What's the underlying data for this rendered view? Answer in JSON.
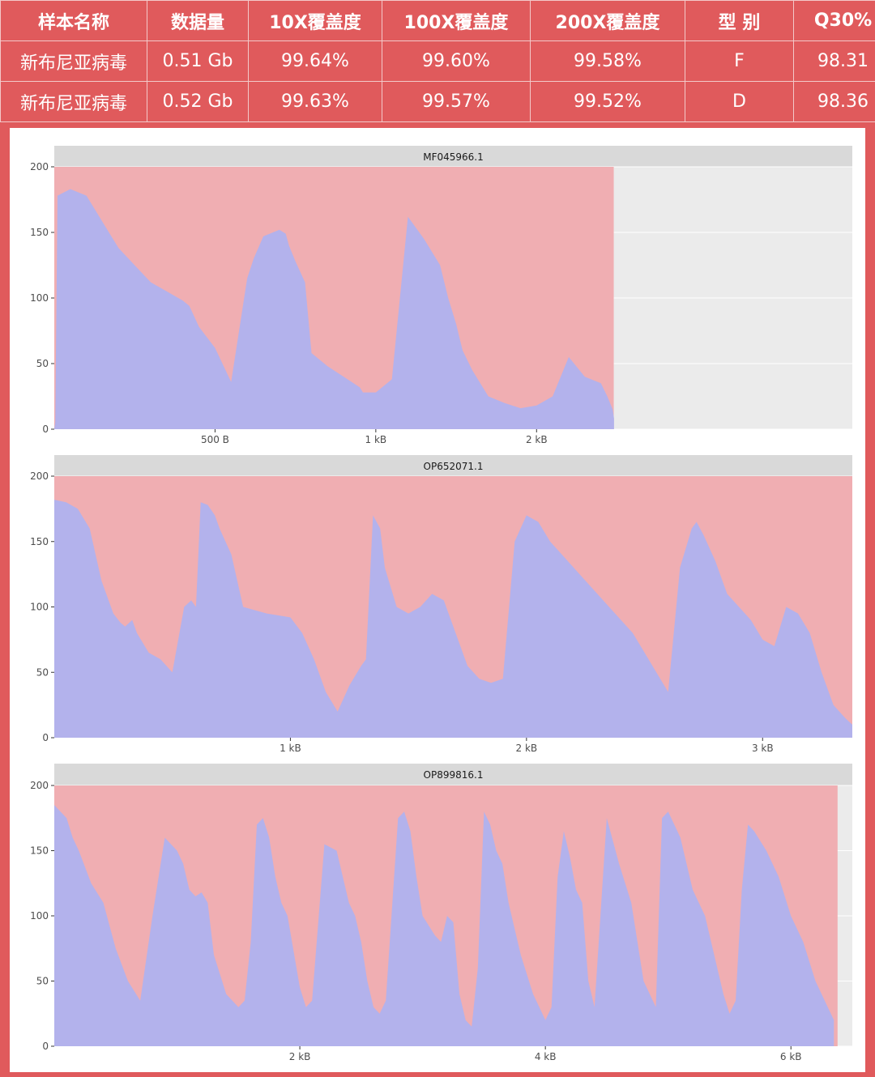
{
  "table": {
    "headers": [
      "样本名称",
      "数据量",
      "10X覆盖度",
      "100X覆盖度",
      "200X覆盖度",
      "型 别",
      "Q30%"
    ],
    "rows": [
      [
        "新布尼亚病毒",
        "0.51 Gb",
        "99.64%",
        "99.60%",
        "99.58%",
        "F",
        "98.31"
      ],
      [
        "新布尼亚病毒",
        "0.52 Gb",
        "99.63%",
        "99.57%",
        "99.52%",
        "D",
        "98.36"
      ]
    ]
  },
  "colors": {
    "background": "#e05a5c",
    "cap_fill": "#f0aeb2",
    "depth_fill": "#b3b2ec",
    "strip": "#d9d9d9",
    "panel_bg": "#ebebeb"
  },
  "chart_data": [
    {
      "type": "area",
      "title": "MF045966.1",
      "ylim": [
        0,
        200
      ],
      "yticks": [
        0,
        50,
        100,
        150,
        200
      ],
      "xlim": [
        0,
        2482
      ],
      "xticks": [
        {
          "value": 500,
          "label": "500 B"
        },
        {
          "value": 1000,
          "label": "1 kB"
        },
        {
          "value": 1500,
          "label": "2 kB"
        }
      ],
      "x": [
        0,
        3,
        10,
        50,
        100,
        150,
        200,
        250,
        300,
        350,
        400,
        420,
        450,
        500,
        550,
        600,
        620,
        650,
        700,
        720,
        730,
        750,
        780,
        800,
        850,
        900,
        950,
        960,
        1000,
        1050,
        1100,
        1150,
        1200,
        1225,
        1250,
        1260,
        1270,
        1300,
        1350,
        1400,
        1450,
        1500,
        1550,
        1600,
        1650,
        1700,
        1720,
        1737,
        1741
      ],
      "y": [
        0,
        5,
        178,
        183,
        178,
        158,
        138,
        125,
        112,
        105,
        98,
        94,
        78,
        62,
        36,
        115,
        130,
        147,
        152,
        149,
        140,
        128,
        112,
        58,
        48,
        40,
        32,
        28,
        28,
        38,
        162,
        145,
        125,
        100,
        80,
        70,
        60,
        45,
        25,
        20,
        16,
        18,
        25,
        55,
        40,
        35,
        25,
        15,
        8
      ],
      "cap": 200,
      "cap_end": 1740
    },
    {
      "type": "area",
      "title": "OP652071.1",
      "ylim": [
        0,
        200
      ],
      "yticks": [
        0,
        50,
        100,
        150,
        200
      ],
      "xlim": [
        0,
        3380
      ],
      "xticks": [
        {
          "value": 1000,
          "label": "1 kB"
        },
        {
          "value": 2000,
          "label": "2 kB"
        },
        {
          "value": 3000,
          "label": "3 kB"
        }
      ],
      "x": [
        0,
        50,
        100,
        150,
        200,
        250,
        280,
        300,
        330,
        350,
        400,
        450,
        500,
        550,
        580,
        600,
        620,
        650,
        680,
        700,
        750,
        800,
        900,
        1000,
        1050,
        1100,
        1150,
        1200,
        1250,
        1300,
        1320,
        1350,
        1380,
        1400,
        1450,
        1500,
        1550,
        1600,
        1650,
        1700,
        1750,
        1800,
        1850,
        1900,
        1950,
        2000,
        2020,
        2050,
        2100,
        2150,
        2200,
        2250,
        2300,
        2350,
        2400,
        2450,
        2500,
        2550,
        2600,
        2650,
        2700,
        2720,
        2750,
        2800,
        2850,
        2900,
        2950,
        3000,
        3050,
        3100,
        3150,
        3200,
        3250,
        3300,
        3350,
        3380
      ],
      "y": [
        182,
        180,
        175,
        160,
        120,
        95,
        88,
        85,
        90,
        80,
        65,
        60,
        50,
        100,
        105,
        100,
        180,
        178,
        170,
        160,
        140,
        100,
        95,
        92,
        80,
        60,
        35,
        20,
        40,
        55,
        60,
        170,
        160,
        130,
        100,
        95,
        100,
        110,
        105,
        80,
        55,
        45,
        42,
        45,
        150,
        170,
        168,
        165,
        150,
        140,
        130,
        120,
        110,
        100,
        90,
        80,
        65,
        50,
        35,
        130,
        160,
        165,
        155,
        135,
        110,
        100,
        90,
        75,
        70,
        100,
        95,
        80,
        50,
        25,
        15,
        10
      ],
      "cap": 200,
      "cap_end": 3380
    },
    {
      "type": "area",
      "title": "OP899816.1",
      "ylim": [
        0,
        200
      ],
      "yticks": [
        0,
        50,
        100,
        150,
        200
      ],
      "xlim": [
        0,
        6500
      ],
      "xticks": [
        {
          "value": 2000,
          "label": "2 kB"
        },
        {
          "value": 4000,
          "label": "4 kB"
        },
        {
          "value": 6000,
          "label": "6 kB"
        }
      ],
      "x": [
        0,
        50,
        100,
        150,
        200,
        300,
        400,
        500,
        600,
        700,
        800,
        900,
        1000,
        1050,
        1100,
        1150,
        1200,
        1250,
        1300,
        1400,
        1500,
        1550,
        1600,
        1650,
        1700,
        1750,
        1800,
        1850,
        1900,
        2000,
        2050,
        2100,
        2200,
        2300,
        2400,
        2450,
        2500,
        2550,
        2600,
        2650,
        2700,
        2800,
        2850,
        2900,
        2950,
        3000,
        3100,
        3150,
        3200,
        3250,
        3300,
        3350,
        3400,
        3450,
        3500,
        3550,
        3600,
        3650,
        3700,
        3800,
        3900,
        4000,
        4050,
        4100,
        4150,
        4200,
        4250,
        4300,
        4350,
        4400,
        4500,
        4600,
        4700,
        4800,
        4850,
        4900,
        4950,
        5000,
        5100,
        5200,
        5300,
        5400,
        5450,
        5500,
        5550,
        5600,
        5650,
        5700,
        5800,
        5900,
        6000,
        6100,
        6200,
        6300,
        6350
      ],
      "y": [
        185,
        180,
        175,
        160,
        150,
        125,
        110,
        75,
        50,
        35,
        100,
        160,
        150,
        140,
        120,
        115,
        118,
        110,
        70,
        40,
        30,
        35,
        80,
        170,
        175,
        160,
        130,
        110,
        100,
        45,
        30,
        35,
        155,
        150,
        110,
        100,
        80,
        50,
        30,
        25,
        35,
        175,
        180,
        165,
        130,
        100,
        85,
        80,
        100,
        95,
        40,
        20,
        15,
        60,
        180,
        170,
        150,
        140,
        110,
        70,
        40,
        20,
        30,
        130,
        165,
        145,
        120,
        110,
        50,
        30,
        175,
        140,
        110,
        50,
        40,
        30,
        175,
        180,
        160,
        120,
        100,
        60,
        40,
        25,
        35,
        120,
        170,
        165,
        150,
        130,
        100,
        80,
        50,
        30,
        20
      ],
      "cap": 200,
      "cap_end": 6380
    }
  ]
}
